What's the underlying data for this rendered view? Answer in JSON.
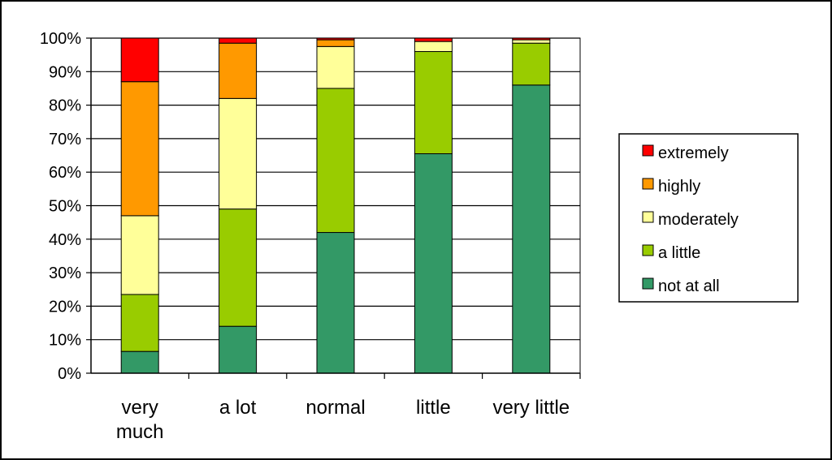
{
  "chart_data": {
    "type": "bar",
    "stacked": true,
    "title": "",
    "xlabel": "",
    "ylabel": "",
    "ylim": [
      0,
      100
    ],
    "y_ticks": [
      "0%",
      "10%",
      "20%",
      "30%",
      "40%",
      "50%",
      "60%",
      "70%",
      "80%",
      "90%",
      "100%"
    ],
    "categories": [
      [
        "very",
        "much"
      ],
      [
        "a lot"
      ],
      [
        "normal"
      ],
      [
        "little"
      ],
      [
        "very little"
      ]
    ],
    "series": [
      {
        "name": "not at all",
        "color": "#339966",
        "values": [
          6.5,
          14,
          42,
          65.5,
          86
        ]
      },
      {
        "name": "a little",
        "color": "#99cc00",
        "values": [
          17,
          35,
          43,
          30.5,
          12.5
        ]
      },
      {
        "name": "moderately",
        "color": "#ffff99",
        "values": [
          23.5,
          33,
          12.5,
          3,
          1
        ]
      },
      {
        "name": "highly",
        "color": "#ff9900",
        "values": [
          40,
          16.5,
          2,
          0,
          0
        ]
      },
      {
        "name": "extremely",
        "color": "#ff0000",
        "values": [
          13,
          1.5,
          0.5,
          1,
          0.5
        ]
      }
    ],
    "grid": true,
    "legend_position": "right"
  }
}
